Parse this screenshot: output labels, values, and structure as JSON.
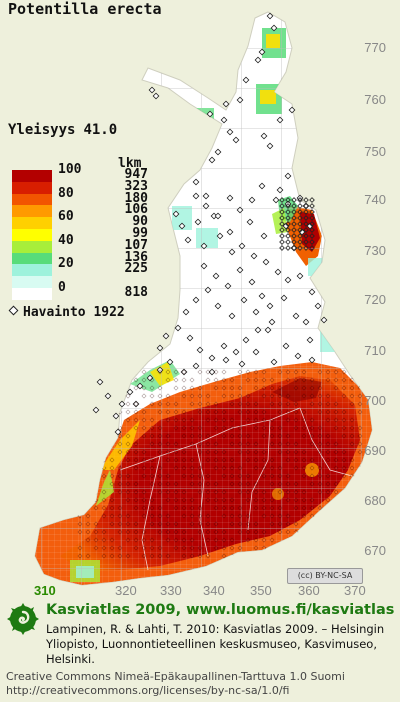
{
  "species": "Potentilla erecta",
  "frequency": {
    "label": "Yleisyys",
    "value": "41.0"
  },
  "legend": {
    "count_header": "lkm",
    "classes": [
      {
        "pct": "100",
        "count": "947",
        "color": "#b30000"
      },
      {
        "pct": "",
        "count": "323",
        "color": "#d81e00"
      },
      {
        "pct": "80",
        "count": "180",
        "color": "#f25500"
      },
      {
        "pct": "",
        "count": "106",
        "color": "#ff9a00"
      },
      {
        "pct": "60",
        "count": "90",
        "color": "#ffd000"
      },
      {
        "pct": "",
        "count": "99",
        "color": "#ffff00"
      },
      {
        "pct": "40",
        "count": "107",
        "color": "#a8ee3a"
      },
      {
        "pct": "",
        "count": "136",
        "color": "#58dc7a"
      },
      {
        "pct": "20",
        "count": "225",
        "color": "#9ef2dc"
      },
      {
        "pct": "",
        "count": "",
        "color": "#d8fbf2"
      },
      {
        "pct": "0",
        "count": "818",
        "color": "#ffffff"
      }
    ]
  },
  "observation": {
    "label": "Havainto 1922"
  },
  "grid": {
    "y_labels": [
      "770",
      "760",
      "750",
      "740",
      "730",
      "720",
      "710",
      "700",
      "690",
      "680",
      "670"
    ],
    "x_labels": [
      "310",
      "320",
      "330",
      "340",
      "350",
      "360",
      "370"
    ],
    "highlight_x": "310"
  },
  "cc_badge": "(cc) BY-NC-SA",
  "footer": {
    "atlas_title": "Kasviatlas 2009, www.luomus.fi/kasviatlas",
    "citation": "Lampinen, R. & Lahti, T. 2010: Kasviatlas 2009. – Helsingin Yliopisto, Luonnontieteellinen keskusmuseo, Kasvimuseo, Helsinki.",
    "license_line1": "Creative Commons Nimeä-Epäkaupallinen-Tarttuva 1.0 Suomi",
    "license_line2": "http://creativecommons.org/licenses/by-nc-sa/1.0/fi"
  },
  "colors": {
    "background": "#eef0dc",
    "land": "#ffffff",
    "grid": "#c8c8c8",
    "brand": "#1e7a12"
  }
}
